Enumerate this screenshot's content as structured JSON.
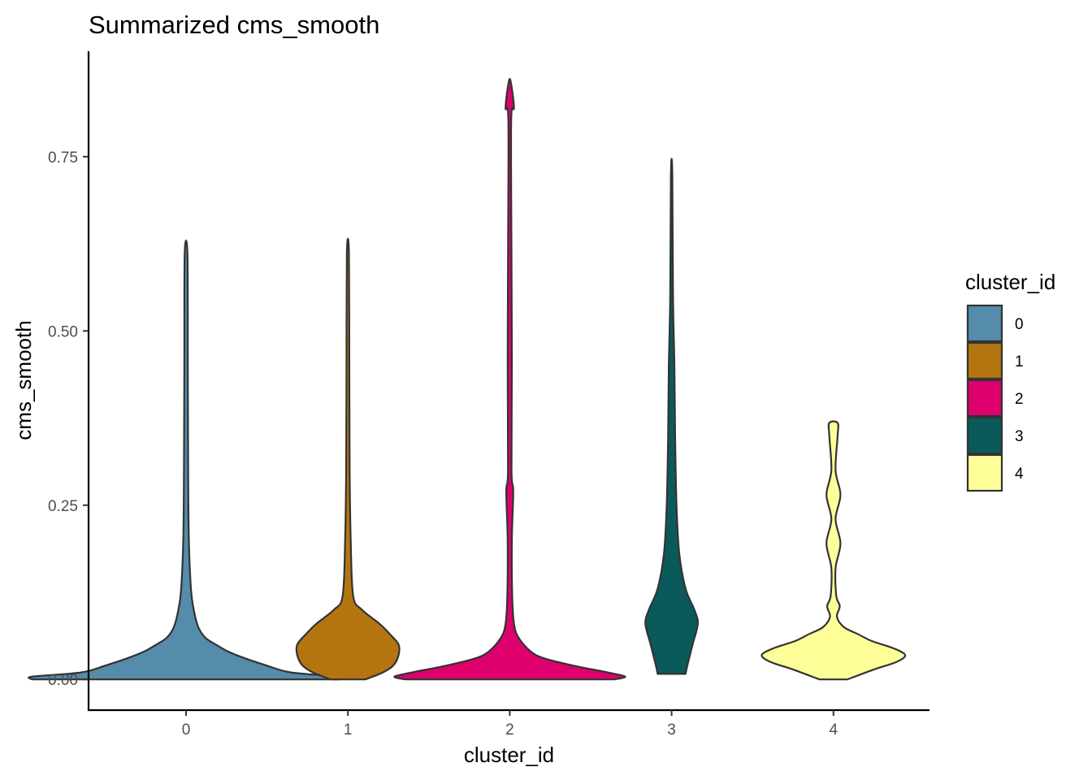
{
  "chart_data": {
    "type": "violin",
    "title": "Summarized cms_smooth",
    "xlabel": "cluster_id",
    "ylabel": "cms_smooth",
    "ylim": [
      -0.042,
      0.9
    ],
    "yticks": [
      0.0,
      0.25,
      0.5,
      0.75
    ],
    "ytick_labels": [
      "0.00",
      "0.25",
      "0.50",
      "0.75"
    ],
    "categories": [
      "0",
      "1",
      "2",
      "3",
      "4"
    ],
    "legend": {
      "title": "cluster_id",
      "position": "right",
      "entries": [
        "0",
        "1",
        "2",
        "3",
        "4"
      ]
    },
    "grid": false,
    "series": [
      {
        "category": "0",
        "color": "#548CAA",
        "min": 0.0,
        "max": 0.61,
        "profile": [
          [
            0.0,
            0.44
          ],
          [
            0.004,
            0.44
          ],
          [
            0.01,
            0.3
          ],
          [
            0.02,
            0.23
          ],
          [
            0.03,
            0.17
          ],
          [
            0.04,
            0.12
          ],
          [
            0.05,
            0.085
          ],
          [
            0.06,
            0.055
          ],
          [
            0.075,
            0.035
          ],
          [
            0.1,
            0.022
          ],
          [
            0.13,
            0.014
          ],
          [
            0.2,
            0.008
          ],
          [
            0.3,
            0.006
          ],
          [
            0.45,
            0.005
          ],
          [
            0.61,
            0.004
          ]
        ]
      },
      {
        "category": "1",
        "color": "#B47511",
        "min": 0.0,
        "max": 0.612,
        "profile": [
          [
            0.0,
            0.05
          ],
          [
            0.01,
            0.1
          ],
          [
            0.02,
            0.13
          ],
          [
            0.035,
            0.145
          ],
          [
            0.05,
            0.145
          ],
          [
            0.065,
            0.12
          ],
          [
            0.08,
            0.09
          ],
          [
            0.1,
            0.04
          ],
          [
            0.12,
            0.015
          ],
          [
            0.2,
            0.008
          ],
          [
            0.3,
            0.005
          ],
          [
            0.45,
            0.004
          ],
          [
            0.612,
            0.003
          ]
        ]
      },
      {
        "category": "2",
        "color": "#DD006D",
        "min": 0.0,
        "max": 0.857,
        "profile": [
          [
            0.0,
            0.3
          ],
          [
            0.004,
            0.33
          ],
          [
            0.01,
            0.28
          ],
          [
            0.02,
            0.18
          ],
          [
            0.03,
            0.1
          ],
          [
            0.04,
            0.06
          ],
          [
            0.06,
            0.025
          ],
          [
            0.08,
            0.012
          ],
          [
            0.12,
            0.007
          ],
          [
            0.2,
            0.006
          ],
          [
            0.27,
            0.01
          ],
          [
            0.3,
            0.005
          ],
          [
            0.45,
            0.006
          ],
          [
            0.6,
            0.005
          ],
          [
            0.8,
            0.004
          ],
          [
            0.82,
            0.012
          ],
          [
            0.857,
            0.003
          ]
        ]
      },
      {
        "category": "3",
        "color": "#0B5A5B",
        "min": 0.008,
        "max": 0.725,
        "profile": [
          [
            0.008,
            0.04
          ],
          [
            0.02,
            0.045
          ],
          [
            0.05,
            0.06
          ],
          [
            0.08,
            0.075
          ],
          [
            0.1,
            0.065
          ],
          [
            0.13,
            0.04
          ],
          [
            0.18,
            0.022
          ],
          [
            0.25,
            0.014
          ],
          [
            0.35,
            0.01
          ],
          [
            0.45,
            0.008
          ],
          [
            0.55,
            0.004
          ],
          [
            0.725,
            0.002
          ]
        ]
      },
      {
        "category": "4",
        "color": "#FFFF99",
        "min": 0.0,
        "max": 0.368,
        "profile": [
          [
            0.0,
            0.04
          ],
          [
            0.015,
            0.12
          ],
          [
            0.025,
            0.18
          ],
          [
            0.035,
            0.205
          ],
          [
            0.045,
            0.17
          ],
          [
            0.055,
            0.11
          ],
          [
            0.065,
            0.07
          ],
          [
            0.075,
            0.03
          ],
          [
            0.09,
            0.01
          ],
          [
            0.105,
            0.018
          ],
          [
            0.12,
            0.008
          ],
          [
            0.16,
            0.006
          ],
          [
            0.195,
            0.02
          ],
          [
            0.23,
            0.006
          ],
          [
            0.265,
            0.02
          ],
          [
            0.3,
            0.006
          ],
          [
            0.35,
            0.012
          ],
          [
            0.368,
            0.012
          ]
        ]
      }
    ]
  }
}
